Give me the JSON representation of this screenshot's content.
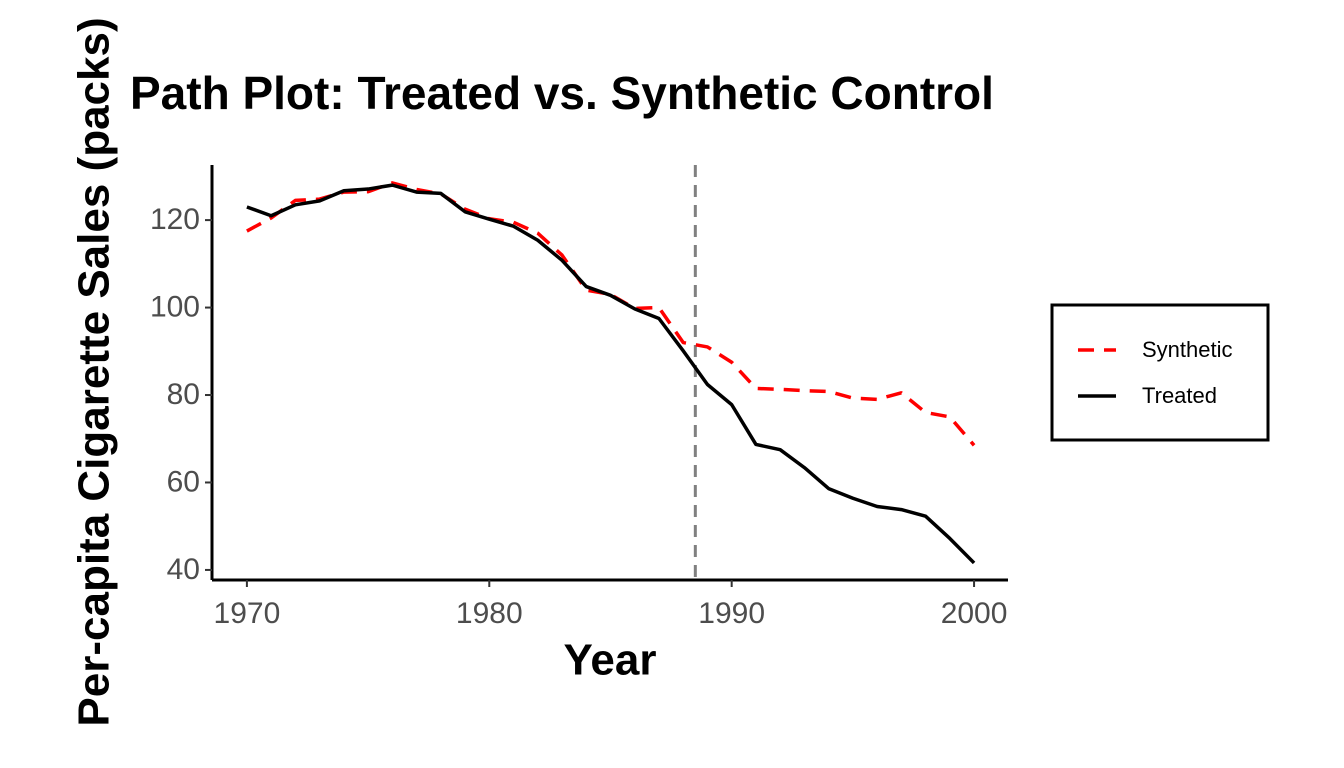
{
  "chart_data": {
    "type": "line",
    "title": "Path Plot: Treated vs. Synthetic Control",
    "x_label": "Year",
    "y_label": "Per-capita Cigarette Sales (packs)",
    "x": [
      1970,
      1971,
      1972,
      1973,
      1974,
      1975,
      1976,
      1977,
      1978,
      1979,
      1980,
      1981,
      1982,
      1983,
      1984,
      1985,
      1986,
      1987,
      1988,
      1989,
      1990,
      1991,
      1992,
      1993,
      1994,
      1995,
      1996,
      1997,
      1998,
      1999,
      2000
    ],
    "series": [
      {
        "name": "Synthetic",
        "color": "#ff0000",
        "dashed": true,
        "values": [
          117.5,
          120.5,
          124.5,
          124.8,
          126.4,
          126.5,
          128.5,
          127,
          126,
          122.5,
          120.3,
          119.5,
          117,
          112,
          104,
          103,
          99.8,
          100,
          92,
          91,
          87.5,
          81.5,
          81.3,
          81,
          80.8,
          79.3,
          79,
          80.5,
          76,
          75,
          68.5
        ]
      },
      {
        "name": "Treated",
        "color": "#000000",
        "dashed": false,
        "values": [
          123,
          121,
          123.5,
          124.4,
          126.7,
          127.1,
          128,
          126.4,
          126.1,
          121.9,
          120.2,
          118.6,
          115.4,
          110.8,
          104.8,
          102.8,
          99.7,
          97.5,
          90.1,
          82.4,
          77.8,
          68.7,
          67.5,
          63.4,
          58.6,
          56.4,
          54.5,
          53.8,
          52.3,
          47.2,
          41.6
        ]
      }
    ],
    "xlim": [
      1968.56,
      2001.4
    ],
    "ylim": [
      37.7,
      132.6
    ],
    "xticks": [
      1970,
      1980,
      1990,
      2000
    ],
    "yticks": [
      40,
      60,
      80,
      100,
      120
    ],
    "vline": {
      "x": 1988.5,
      "color": "#808080"
    },
    "legend": "right",
    "grid": false
  }
}
